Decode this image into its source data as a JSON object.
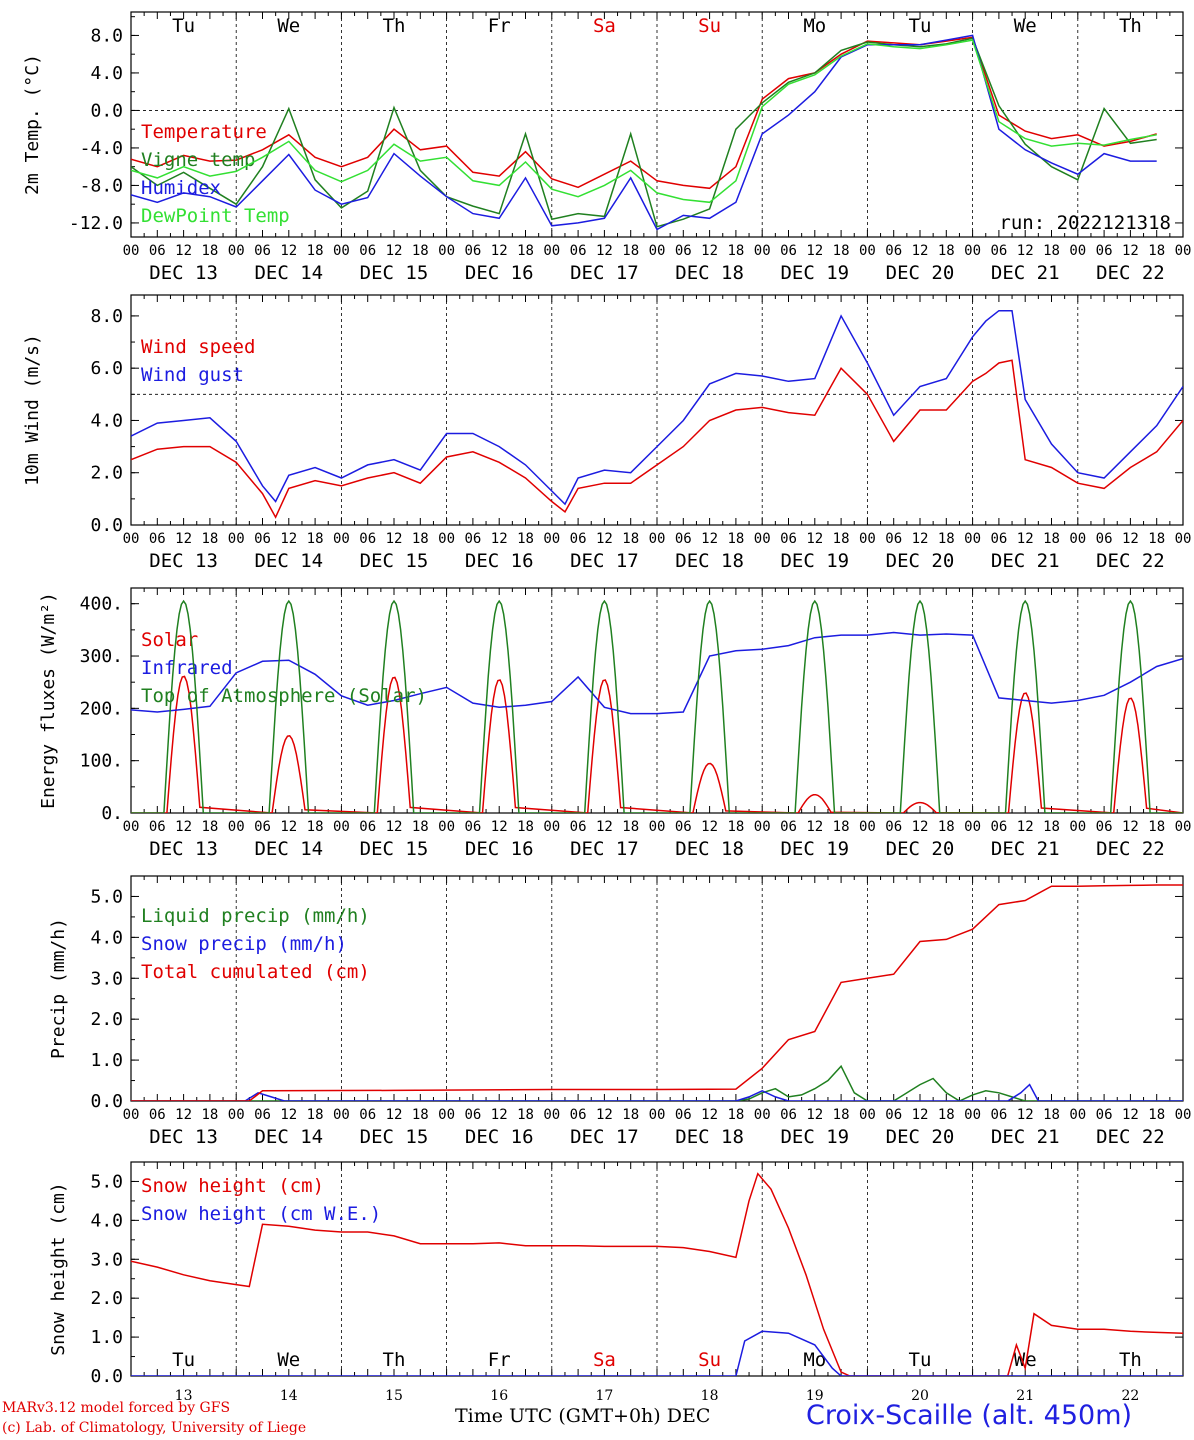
{
  "footer": {
    "model": "MARv3.12 model forced by GFS",
    "credit": "(c) Lab. of Climatology, University of Liege",
    "xlabel": "Time UTC (GMT+0h) DEC",
    "station": "Croix-Scaille (alt. 450m)"
  },
  "axis_time": {
    "hour_ticks": [
      "00",
      "06",
      "12",
      "18"
    ],
    "dates": [
      "DEC 13",
      "DEC 14",
      "DEC 15",
      "DEC 16",
      "DEC 17",
      "DEC 18",
      "DEC 19",
      "DEC 20",
      "DEC 21",
      "DEC 22"
    ],
    "day_numbers": [
      "13",
      "14",
      "15",
      "16",
      "17",
      "18",
      "19",
      "20",
      "21",
      "22"
    ],
    "weekdays": [
      "Tu",
      "We",
      "Th",
      "Fr",
      "Sa",
      "Su",
      "Mo",
      "Tu",
      "We",
      "Th"
    ],
    "weekend_color": "#e00000"
  },
  "colors": {
    "red": "#e00000",
    "green": "#208020",
    "blue": "#1c1ce0",
    "lightgreen": "#33e033"
  },
  "chart_data": [
    {
      "type": "line",
      "ylabel": "2m Temp. (°C)",
      "ylim": [
        -13.5,
        10.5
      ],
      "yticks": [
        "8.0",
        "4.0",
        "0.0",
        "-4.0",
        "-8.0",
        "-12.0"
      ],
      "yticks_values": [
        8,
        4,
        0,
        -4,
        -8,
        -12
      ],
      "ref_line": 0,
      "annotation": "run: 2022121318",
      "x_unit": "hours from 13 Dec 00 UTC",
      "series": [
        {
          "name": "Temperature",
          "color": "#e00000",
          "x": [
            0,
            6,
            12,
            18,
            24,
            30,
            36,
            42,
            48,
            54,
            60,
            66,
            72,
            78,
            84,
            90,
            96,
            102,
            108,
            114,
            120,
            126,
            132,
            138,
            144,
            150,
            156,
            162,
            168,
            174,
            180,
            186,
            192,
            198,
            204,
            210,
            216,
            222,
            228,
            234
          ],
          "values": [
            -5.2,
            -6,
            -4.8,
            -5.4,
            -5.3,
            -4.2,
            -2.6,
            -5,
            -6,
            -5,
            -2,
            -4.2,
            -3.8,
            -6.6,
            -7,
            -4.4,
            -7.3,
            -8.2,
            -6.8,
            -5.4,
            -7.5,
            -8,
            -8.3,
            -6,
            1.2,
            3.4,
            4,
            6,
            7.4,
            7.2,
            7,
            7.4,
            7.8,
            -0.5,
            -2.2,
            -3,
            -2.6,
            -3.8,
            -3.3,
            -2.5
          ]
        },
        {
          "name": "Vigne temp",
          "color": "#208020",
          "x": [
            0,
            6,
            12,
            18,
            24,
            30,
            36,
            42,
            48,
            54,
            60,
            66,
            72,
            78,
            84,
            90,
            96,
            102,
            108,
            114,
            120,
            126,
            132,
            138,
            144,
            150,
            156,
            162,
            168,
            174,
            180,
            186,
            192,
            198,
            204,
            210,
            216,
            222,
            228,
            234
          ],
          "values": [
            -6,
            -8,
            -6.6,
            -8.3,
            -10,
            -6,
            0.2,
            -7.4,
            -10.4,
            -8.6,
            0.3,
            -6.4,
            -9.2,
            -10.2,
            -11,
            -2.5,
            -11.6,
            -11,
            -11.3,
            -2.5,
            -12.4,
            -11.6,
            -10.5,
            -2,
            0.8,
            3,
            4,
            6.4,
            7.3,
            7,
            6.8,
            7.1,
            7.7,
            0.5,
            -3.6,
            -6,
            -7.4,
            0.2,
            -3.5,
            -3.1
          ]
        },
        {
          "name": "Humidex",
          "color": "#1c1ce0",
          "x": [
            0,
            6,
            12,
            18,
            24,
            30,
            36,
            42,
            48,
            54,
            60,
            66,
            72,
            78,
            84,
            90,
            96,
            102,
            108,
            114,
            120,
            126,
            132,
            138,
            144,
            150,
            156,
            162,
            168,
            174,
            180,
            186,
            192,
            198,
            204,
            210,
            216,
            222,
            228,
            234
          ],
          "values": [
            -9,
            -9.8,
            -8.8,
            -9.2,
            -10.3,
            -7.5,
            -4.7,
            -8.5,
            -10,
            -9.3,
            -4.6,
            -7,
            -9.2,
            -11,
            -11.5,
            -7.2,
            -12.3,
            -12,
            -11.5,
            -7.2,
            -12.7,
            -11.2,
            -11.5,
            -9.8,
            -2.5,
            -0.5,
            2,
            5.7,
            7,
            7,
            7,
            7.5,
            8,
            -2,
            -4.2,
            -5.6,
            -6.8,
            -4.6,
            -5.4,
            -5.4
          ]
        },
        {
          "name": "DewPoint Temp",
          "color": "#33e033",
          "x": [
            0,
            6,
            12,
            18,
            24,
            30,
            36,
            42,
            48,
            54,
            60,
            66,
            72,
            78,
            84,
            90,
            96,
            102,
            108,
            114,
            120,
            126,
            132,
            138,
            144,
            150,
            156,
            162,
            168,
            174,
            180,
            186,
            192,
            198,
            204,
            210,
            216,
            222,
            228,
            234
          ],
          "values": [
            -6.4,
            -7.2,
            -6,
            -7,
            -6.5,
            -5,
            -3.3,
            -6.4,
            -7.6,
            -6.4,
            -3.6,
            -5.4,
            -5,
            -7.5,
            -8,
            -5.5,
            -8.4,
            -9.2,
            -8,
            -6.4,
            -8.8,
            -9.5,
            -9.8,
            -7.5,
            0.4,
            2.8,
            3.8,
            5.8,
            7.1,
            6.8,
            6.6,
            7,
            7.5,
            -1.2,
            -3,
            -3.8,
            -3.5,
            -3.7,
            -3.1,
            -2.6
          ]
        }
      ]
    },
    {
      "type": "line",
      "ylabel": "10m Wind (m/s)",
      "ylim": [
        0,
        8.8
      ],
      "yticks": [
        "8.0",
        "6.0",
        "4.0",
        "2.0",
        "0.0"
      ],
      "yticks_values": [
        8,
        6,
        4,
        2,
        0
      ],
      "ref_line": 5,
      "x_unit": "hours from 13 Dec 00 UTC",
      "series": [
        {
          "name": "Wind speed",
          "color": "#e00000",
          "x": [
            0,
            6,
            12,
            18,
            24,
            30,
            33,
            36,
            42,
            48,
            54,
            60,
            66,
            72,
            78,
            84,
            90,
            96,
            99,
            102,
            108,
            114,
            120,
            126,
            132,
            138,
            144,
            150,
            156,
            162,
            168,
            174,
            180,
            186,
            192,
            195,
            198,
            201,
            204,
            210,
            216,
            222,
            228,
            234,
            240
          ],
          "values": [
            2.5,
            2.9,
            3,
            3,
            2.4,
            1.2,
            0.3,
            1.4,
            1.7,
            1.5,
            1.8,
            2,
            1.6,
            2.6,
            2.8,
            2.4,
            1.8,
            0.9,
            0.5,
            1.4,
            1.6,
            1.6,
            2.3,
            3,
            4,
            4.4,
            4.5,
            4.3,
            4.2,
            6,
            5,
            3.2,
            4.4,
            4.4,
            5.5,
            5.8,
            6.2,
            6.3,
            2.5,
            2.2,
            1.6,
            1.4,
            2.2,
            2.8,
            4
          ]
        },
        {
          "name": "Wind gust",
          "color": "#1c1ce0",
          "x": [
            0,
            6,
            12,
            18,
            24,
            30,
            33,
            36,
            42,
            48,
            54,
            60,
            66,
            72,
            78,
            84,
            90,
            96,
            99,
            102,
            108,
            114,
            120,
            126,
            132,
            138,
            144,
            150,
            156,
            162,
            168,
            174,
            180,
            186,
            192,
            195,
            198,
            201,
            204,
            210,
            216,
            222,
            228,
            234,
            240
          ],
          "values": [
            3.4,
            3.9,
            4,
            4.1,
            3.2,
            1.5,
            0.9,
            1.9,
            2.2,
            1.8,
            2.3,
            2.5,
            2.1,
            3.5,
            3.5,
            3,
            2.3,
            1.3,
            0.8,
            1.8,
            2.1,
            2,
            3,
            4,
            5.4,
            5.8,
            5.7,
            5.5,
            5.6,
            8,
            6.2,
            4.2,
            5.3,
            5.6,
            7.2,
            7.8,
            8.2,
            8.2,
            4.8,
            3.1,
            2,
            1.8,
            2.8,
            3.8,
            5.3
          ]
        }
      ]
    },
    {
      "type": "line",
      "ylabel": "Energy fluxes (W/m²)",
      "ylim": [
        0,
        430
      ],
      "yticks": [
        "400.",
        "300.",
        "200.",
        "100.",
        "0."
      ],
      "yticks_values": [
        400,
        300,
        200,
        100,
        0
      ],
      "daily_peaks": {
        "Top of Atmosphere (Solar)": [
          405,
          405,
          405,
          405,
          405,
          405,
          405,
          405,
          405,
          405
        ],
        "Solar": [
          262,
          148,
          260,
          255,
          255,
          95,
          35,
          20,
          230,
          220
        ]
      },
      "x_unit": "hours from 13 Dec 00 UTC",
      "series": [
        {
          "name": "Solar",
          "color": "#e00000"
        },
        {
          "name": "Infrared",
          "color": "#1c1ce0",
          "x": [
            0,
            6,
            12,
            18,
            24,
            30,
            36,
            42,
            48,
            54,
            60,
            66,
            72,
            78,
            84,
            90,
            96,
            102,
            108,
            114,
            120,
            126,
            132,
            138,
            144,
            150,
            156,
            162,
            168,
            174,
            180,
            186,
            192,
            198,
            204,
            210,
            216,
            222,
            228,
            234,
            240
          ],
          "values": [
            197,
            193,
            198,
            204,
            268,
            290,
            292,
            265,
            224,
            206,
            215,
            228,
            240,
            210,
            202,
            206,
            213,
            260,
            202,
            190,
            190,
            193,
            300,
            310,
            313,
            320,
            335,
            340,
            340,
            345,
            340,
            342,
            340,
            220,
            215,
            210,
            215,
            225,
            250,
            280,
            295
          ]
        },
        {
          "name": "Top of Atmosphere (Solar)",
          "color": "#208020"
        }
      ]
    },
    {
      "type": "line",
      "ylabel": "Precip (mm/h)",
      "ylim": [
        0,
        5.5
      ],
      "yticks": [
        "5.0",
        "4.0",
        "3.0",
        "2.0",
        "1.0",
        "0.0"
      ],
      "yticks_values": [
        5,
        4,
        3,
        2,
        1,
        0
      ],
      "x_unit": "hours from 13 Dec 00 UTC",
      "series": [
        {
          "name": "Liquid precip (mm/h)",
          "color": "#208020",
          "x": [
            0,
            138,
            141,
            144,
            147,
            150,
            153,
            156,
            159,
            162,
            165,
            168,
            174,
            180,
            183,
            186,
            189,
            192,
            195,
            198,
            201,
            204,
            240
          ],
          "values": [
            0,
            0,
            0.05,
            0.2,
            0.3,
            0.1,
            0.15,
            0.3,
            0.5,
            0.85,
            0.2,
            0,
            0,
            0.4,
            0.55,
            0.2,
            0,
            0.15,
            0.25,
            0.2,
            0.1,
            0,
            0
          ]
        },
        {
          "name": "Snow precip (mm/h)",
          "color": "#1c1ce0",
          "x": [
            0,
            26,
            29,
            32,
            35,
            138,
            141,
            144,
            147,
            150,
            200,
            203,
            205,
            207,
            240
          ],
          "values": [
            0,
            0,
            0.2,
            0.1,
            0,
            0,
            0.1,
            0.25,
            0.1,
            0,
            0,
            0.2,
            0.4,
            0,
            0
          ]
        },
        {
          "name": "Total cumulated (cm)",
          "color": "#e00000",
          "x": [
            0,
            27,
            30,
            60,
            96,
            120,
            138,
            144,
            150,
            156,
            162,
            168,
            174,
            180,
            186,
            192,
            198,
            204,
            210,
            216,
            222,
            228,
            234,
            240
          ],
          "values": [
            0,
            0,
            0.25,
            0.26,
            0.28,
            0.28,
            0.29,
            0.8,
            1.5,
            1.7,
            2.9,
            3,
            3.1,
            3.9,
            3.95,
            4.2,
            4.8,
            4.9,
            5.25,
            5.25,
            5.26,
            5.27,
            5.28,
            5.28
          ]
        }
      ]
    },
    {
      "type": "line",
      "ylabel": "Snow height (cm)",
      "ylim": [
        0,
        5.5
      ],
      "yticks": [
        "5.0",
        "4.0",
        "3.0",
        "2.0",
        "1.0",
        "0.0"
      ],
      "yticks_values": [
        5,
        4,
        3,
        2,
        1,
        0
      ],
      "x_unit": "hours from 13 Dec 00 UTC",
      "series": [
        {
          "name": "Snow height (cm)",
          "color": "#e00000",
          "x": [
            0,
            6,
            12,
            18,
            24,
            27,
            30,
            36,
            42,
            48,
            54,
            60,
            66,
            72,
            78,
            84,
            90,
            96,
            102,
            108,
            114,
            120,
            126,
            132,
            138,
            141,
            143,
            146,
            150,
            154,
            158,
            162,
            164,
            174,
            180,
            186,
            192,
            198,
            200,
            202,
            204,
            206,
            210,
            216,
            222,
            228,
            234,
            240
          ],
          "values": [
            2.95,
            2.8,
            2.6,
            2.45,
            2.35,
            2.3,
            3.9,
            3.85,
            3.75,
            3.7,
            3.7,
            3.6,
            3.4,
            3.4,
            3.4,
            3.42,
            3.35,
            3.35,
            3.35,
            3.33,
            3.33,
            3.33,
            3.3,
            3.2,
            3.05,
            4.5,
            5.2,
            4.8,
            3.8,
            2.6,
            1.2,
            0.1,
            0,
            0,
            0,
            0,
            0,
            0,
            0,
            0.8,
            0.2,
            1.6,
            1.3,
            1.2,
            1.2,
            1.15,
            1.12,
            1.1
          ]
        },
        {
          "name": "Snow height (cm W.E.)",
          "color": "#1c1ce0",
          "x": [
            0,
            138,
            140,
            144,
            150,
            156,
            160,
            162,
            240
          ],
          "values": [
            0,
            0,
            0.9,
            1.15,
            1.1,
            0.8,
            0.2,
            0,
            0
          ]
        }
      ]
    }
  ]
}
